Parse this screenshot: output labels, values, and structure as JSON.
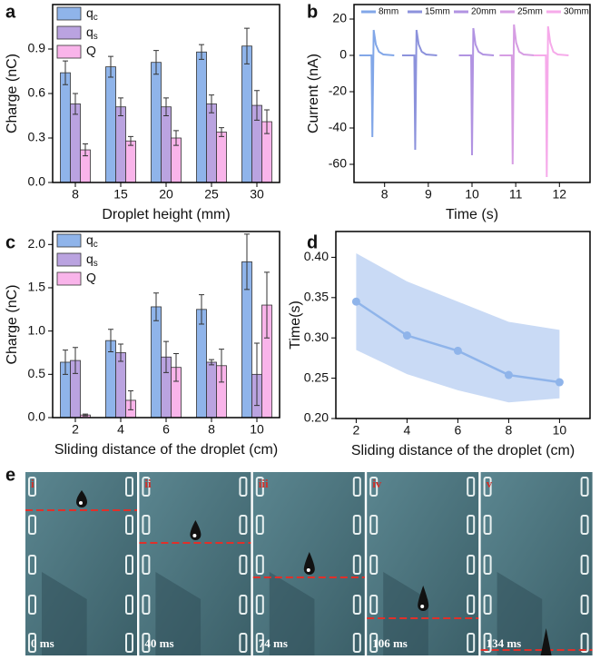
{
  "chart_data": [
    {
      "type": "bar",
      "panel": "a",
      "x_label": "Droplet height  (mm)",
      "y_label": "Charge (nC)",
      "categories": [
        "8",
        "15",
        "20",
        "25",
        "30"
      ],
      "series": [
        {
          "name": "qc",
          "color": "#8fb4ea",
          "values": [
            0.74,
            0.78,
            0.81,
            0.88,
            0.92
          ],
          "errors": [
            0.08,
            0.07,
            0.08,
            0.05,
            0.12
          ]
        },
        {
          "name": "qs",
          "color": "#baa3e0",
          "values": [
            0.53,
            0.51,
            0.51,
            0.53,
            0.52
          ],
          "errors": [
            0.07,
            0.06,
            0.06,
            0.06,
            0.1
          ]
        },
        {
          "name": "Q",
          "color": "#f9b4ea",
          "values": [
            0.22,
            0.28,
            0.3,
            0.34,
            0.41
          ],
          "errors": [
            0.04,
            0.03,
            0.05,
            0.03,
            0.08
          ]
        }
      ],
      "ylim": [
        0,
        1.2
      ],
      "yticks": [
        {
          "value": 0,
          "label": "0.0"
        },
        0.3,
        0.6,
        0.9
      ],
      "legend": "upper left"
    },
    {
      "type": "line",
      "panel": "b",
      "x_label": "Time (s)",
      "y_label": "Current (nA)",
      "series": [
        {
          "name": "8mm",
          "color": "#82a7e8",
          "x": [
            7.42,
            7.7,
            7.72,
            7.75,
            7.8,
            7.87,
            7.97,
            8.22
          ],
          "values": [
            0,
            0,
            -45,
            14,
            6,
            2,
            0.5,
            0
          ]
        },
        {
          "name": "15mm",
          "color": "#8c92dc",
          "x": [
            8.4,
            8.68,
            8.7,
            8.73,
            8.78,
            8.85,
            8.95,
            9.2
          ],
          "values": [
            0,
            0,
            -52,
            14,
            6,
            2,
            0.5,
            0
          ]
        },
        {
          "name": "20mm",
          "color": "#b193e2",
          "x": [
            9.7,
            9.98,
            10,
            10.03,
            10.08,
            10.15,
            10.25,
            10.5
          ],
          "values": [
            0,
            0,
            -55,
            15,
            6,
            2,
            0.5,
            0
          ]
        },
        {
          "name": "25mm",
          "color": "#d69de3",
          "x": [
            10.63,
            10.91,
            10.93,
            10.96,
            11.01,
            11.08,
            11.18,
            11.43
          ],
          "values": [
            0,
            0,
            -60,
            17,
            7,
            2,
            0.5,
            0
          ]
        },
        {
          "name": "30mm",
          "color": "#f6aaea",
          "x": [
            11.41,
            11.69,
            11.71,
            11.74,
            11.79,
            11.86,
            11.96,
            12.21
          ],
          "values": [
            0,
            0,
            -67,
            16,
            7,
            2,
            0.5,
            0
          ]
        }
      ],
      "xlim": [
        7.3,
        12.7
      ],
      "xticks": [
        8,
        9,
        10,
        11,
        12
      ],
      "ylim": [
        -70,
        28
      ],
      "yticks": [
        20,
        0,
        -20,
        -40,
        -60
      ],
      "legend": "upper center"
    },
    {
      "type": "bar",
      "panel": "c",
      "x_label": "Sliding distance of the droplet (cm)",
      "y_label": "Charge (nC)",
      "categories": [
        "2",
        "4",
        "6",
        "8",
        "10"
      ],
      "series": [
        {
          "name": "qc",
          "color": "#8fb4ea",
          "values": [
            0.64,
            0.89,
            1.28,
            1.25,
            1.8
          ],
          "errors": [
            0.14,
            0.13,
            0.16,
            0.17,
            0.32
          ]
        },
        {
          "name": "qs",
          "color": "#baa3e0",
          "values": [
            0.66,
            0.75,
            0.7,
            0.64,
            0.5
          ],
          "errors": [
            0.15,
            0.1,
            0.18,
            0.03,
            0.36
          ]
        },
        {
          "name": "Q",
          "color": "#f9b4ea",
          "values": [
            0.03,
            0.2,
            0.58,
            0.6,
            1.3
          ],
          "errors": [
            0.01,
            0.11,
            0.16,
            0.19,
            0.38
          ]
        }
      ],
      "ylim": [
        0,
        2.15
      ],
      "yticks": [
        {
          "value": 0,
          "label": "0.0"
        },
        0.5,
        {
          "value": 1,
          "label": "1.0"
        },
        1.5,
        {
          "value": 2,
          "label": "2.0"
        }
      ],
      "legend": "upper left"
    },
    {
      "type": "band",
      "panel": "d",
      "x_label": "Sliding distance of the droplet (cm)",
      "y_label": "Time(s)",
      "x": [
        2,
        4,
        6,
        8,
        10
      ],
      "values": [
        0.345,
        0.303,
        0.284,
        0.254,
        0.245
      ],
      "band_lower": [
        0.285,
        0.255,
        0.235,
        0.22,
        0.225
      ],
      "band_upper": [
        0.405,
        0.37,
        0.345,
        0.32,
        0.31
      ],
      "color": "#8fb4ea",
      "band_color": "#c9daf5",
      "xlim": [
        1.2,
        11.2
      ],
      "xticks": [
        2,
        4,
        6,
        8,
        10
      ],
      "ylim": [
        0.2,
        0.432
      ],
      "yticks": [
        {
          "value": 0.2,
          "label": "0.20"
        },
        0.25,
        {
          "value": 0.3,
          "label": "0.30"
        },
        0.35,
        {
          "value": 0.4,
          "label": "0.40"
        }
      ]
    }
  ],
  "image_panel": {
    "panel": "e",
    "frames": [
      {
        "index": "i",
        "time": "0 ms"
      },
      {
        "index": "ii",
        "time": "40 ms"
      },
      {
        "index": "iii",
        "time": "74 ms"
      },
      {
        "index": "iv",
        "time": "106 ms"
      },
      {
        "index": "v",
        "time": "134 ms"
      }
    ]
  }
}
